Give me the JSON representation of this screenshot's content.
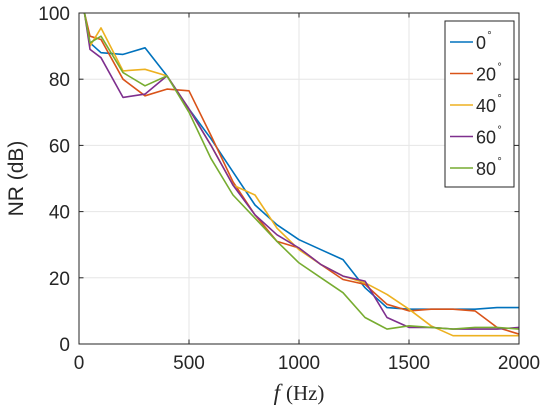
{
  "chart_data": {
    "type": "line",
    "xlabel_var": "f",
    "xlabel_unit": "(Hz)",
    "ylabel": "NR (dB)",
    "xlim": [
      0,
      2000
    ],
    "ylim": [
      0,
      100
    ],
    "x_ticks": [
      0,
      500,
      1000,
      1500,
      2000
    ],
    "y_ticks": [
      0,
      20,
      40,
      60,
      80,
      100
    ],
    "grid": true,
    "legend_position": "top-right",
    "degree_symbol": "°",
    "series": [
      {
        "name": "0",
        "color": "#0072BD",
        "points": [
          [
            25,
            100
          ],
          [
            50,
            91
          ],
          [
            100,
            88
          ],
          [
            200,
            87.5
          ],
          [
            300,
            89.5
          ],
          [
            400,
            81
          ],
          [
            500,
            71
          ],
          [
            600,
            62
          ],
          [
            700,
            52
          ],
          [
            800,
            42
          ],
          [
            900,
            36
          ],
          [
            1000,
            31.5
          ],
          [
            1100,
            28.5
          ],
          [
            1200,
            25.5
          ],
          [
            1300,
            17
          ],
          [
            1400,
            11
          ],
          [
            1500,
            10.5
          ],
          [
            1600,
            10.5
          ],
          [
            1700,
            10.5
          ],
          [
            1800,
            10.5
          ],
          [
            1900,
            11
          ],
          [
            2000,
            11
          ]
        ]
      },
      {
        "name": "20",
        "color": "#D95319",
        "points": [
          [
            25,
            100
          ],
          [
            50,
            93
          ],
          [
            100,
            92
          ],
          [
            200,
            80
          ],
          [
            300,
            75
          ],
          [
            400,
            77
          ],
          [
            500,
            76.5
          ],
          [
            600,
            63
          ],
          [
            700,
            49
          ],
          [
            800,
            39
          ],
          [
            900,
            31
          ],
          [
            1000,
            29
          ],
          [
            1100,
            24
          ],
          [
            1200,
            19.5
          ],
          [
            1300,
            18
          ],
          [
            1400,
            12
          ],
          [
            1500,
            10
          ],
          [
            1600,
            10.5
          ],
          [
            1700,
            10.5
          ],
          [
            1800,
            10
          ],
          [
            1900,
            5
          ],
          [
            2000,
            3
          ]
        ]
      },
      {
        "name": "40",
        "color": "#EDB120",
        "points": [
          [
            25,
            100
          ],
          [
            50,
            90
          ],
          [
            100,
            95.5
          ],
          [
            200,
            82.5
          ],
          [
            300,
            83
          ],
          [
            400,
            81
          ],
          [
            500,
            71
          ],
          [
            600,
            60
          ],
          [
            700,
            48
          ],
          [
            800,
            45
          ],
          [
            900,
            35
          ],
          [
            1000,
            28.5
          ],
          [
            1100,
            24
          ],
          [
            1200,
            20.5
          ],
          [
            1300,
            18.5
          ],
          [
            1400,
            15
          ],
          [
            1500,
            10.5
          ],
          [
            1600,
            5.5
          ],
          [
            1700,
            2.5
          ],
          [
            1800,
            2.5
          ],
          [
            1900,
            2.5
          ],
          [
            2000,
            2.5
          ]
        ]
      },
      {
        "name": "60",
        "color": "#7E2F8E",
        "points": [
          [
            25,
            100
          ],
          [
            50,
            89
          ],
          [
            100,
            86.5
          ],
          [
            200,
            74.5
          ],
          [
            300,
            75.5
          ],
          [
            400,
            81
          ],
          [
            500,
            71
          ],
          [
            600,
            60
          ],
          [
            700,
            48
          ],
          [
            800,
            39
          ],
          [
            900,
            33
          ],
          [
            1000,
            29
          ],
          [
            1100,
            24
          ],
          [
            1200,
            20.5
          ],
          [
            1300,
            19
          ],
          [
            1400,
            8
          ],
          [
            1500,
            5
          ],
          [
            1600,
            5
          ],
          [
            1700,
            4.5
          ],
          [
            1800,
            4.5
          ],
          [
            1900,
            4.5
          ],
          [
            2000,
            5
          ]
        ]
      },
      {
        "name": "80",
        "color": "#77AC30",
        "points": [
          [
            25,
            100
          ],
          [
            50,
            91
          ],
          [
            100,
            93
          ],
          [
            200,
            82
          ],
          [
            300,
            78
          ],
          [
            400,
            81
          ],
          [
            500,
            70
          ],
          [
            600,
            56
          ],
          [
            700,
            45
          ],
          [
            800,
            38
          ],
          [
            900,
            31
          ],
          [
            1000,
            24.5
          ],
          [
            1100,
            20
          ],
          [
            1200,
            15.5
          ],
          [
            1300,
            8
          ],
          [
            1400,
            4.5
          ],
          [
            1500,
            5.5
          ],
          [
            1600,
            5
          ],
          [
            1700,
            4.5
          ],
          [
            1800,
            5
          ],
          [
            1900,
            5
          ],
          [
            2000,
            4.5
          ]
        ]
      }
    ]
  }
}
